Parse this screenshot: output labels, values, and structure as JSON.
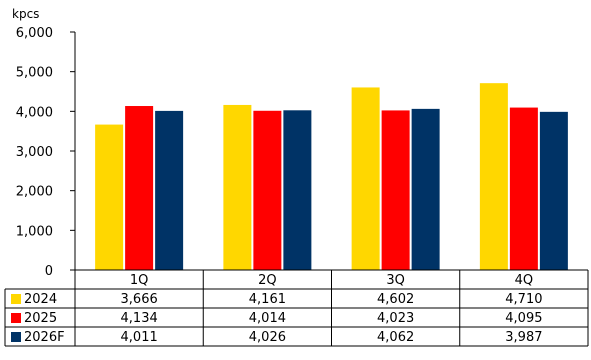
{
  "chart_data": {
    "type": "bar",
    "unit_label": "kpcs",
    "categories": [
      "1Q",
      "2Q",
      "3Q",
      "4Q"
    ],
    "series": [
      {
        "name": "2024",
        "color": "#FFD700",
        "values": [
          3666,
          4161,
          4602,
          4710
        ],
        "labels": [
          "3,666",
          "4,161",
          "4,602",
          "4,710"
        ]
      },
      {
        "name": "2025",
        "color": "#FF0000",
        "values": [
          4134,
          4014,
          4023,
          4095
        ],
        "labels": [
          "4,134",
          "4,014",
          "4,023",
          "4,095"
        ]
      },
      {
        "name": "2026F",
        "color": "#003366",
        "values": [
          4011,
          4026,
          4062,
          3987
        ],
        "labels": [
          "4,011",
          "4,026",
          "4,062",
          "3,987"
        ]
      }
    ],
    "ylim": [
      0,
      6000
    ],
    "yticks": [
      0,
      1000,
      2000,
      3000,
      4000,
      5000,
      6000
    ],
    "ytick_labels": [
      "0",
      "1,000",
      "2,000",
      "3,000",
      "4,000",
      "5,000",
      "6,000"
    ],
    "grid": false,
    "legend": "data-table"
  }
}
